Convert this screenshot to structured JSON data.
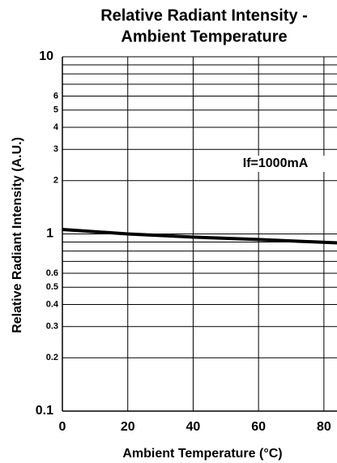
{
  "chart_data": {
    "type": "line",
    "title": [
      "Relative Radiant Intensity -",
      "Ambient Temperature"
    ],
    "x_label": "Ambient Temperature (°C)",
    "y_label": "Relative Radiant Intensity (A.U.)",
    "annotation": "If=1000mA",
    "x": [
      0,
      20,
      40,
      60,
      84
    ],
    "series": [
      {
        "name": "If=1000mA",
        "color": "#000000",
        "values": [
          1.06,
          1.0,
          0.96,
          0.93,
          0.89
        ]
      }
    ],
    "xlim": [
      0,
      84
    ],
    "ylim": [
      0.1,
      10
    ],
    "ylog": true,
    "xticks": [
      0,
      20,
      40,
      60,
      80
    ],
    "yticks": [
      0.1,
      0.2,
      0.3,
      0.4,
      0.5,
      0.6,
      1,
      2,
      3,
      4,
      5,
      6,
      10
    ],
    "y_major_ticks": [
      0.1,
      1,
      10
    ],
    "y_minor_gridlines": [
      0.7,
      0.8,
      0.9,
      7,
      8,
      9
    ],
    "grid": true
  }
}
